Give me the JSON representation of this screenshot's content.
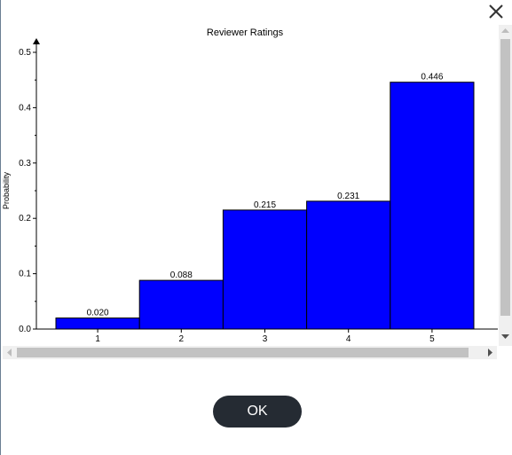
{
  "dialog": {
    "close_icon": "close-icon",
    "ok_label": "OK"
  },
  "colors": {
    "bar_fill": "#0000ff",
    "bar_stroke": "#000000",
    "ok_button_bg": "#252b33",
    "scrollbar_track": "#f0f0f0",
    "scrollbar_thumb": "#c2c2c2"
  },
  "chart_data": {
    "type": "bar",
    "title": "Reviewer Ratings",
    "xlabel": "",
    "ylabel": "Probability",
    "categories": [
      "1",
      "2",
      "3",
      "4",
      "5"
    ],
    "values": [
      0.02,
      0.088,
      0.215,
      0.231,
      0.446
    ],
    "value_labels": [
      "0.020",
      "0.088",
      "0.215",
      "0.231",
      "0.446"
    ],
    "ylim": [
      0,
      0.5
    ],
    "yticks": [
      "0.0",
      "0.1",
      "0.2",
      "0.3",
      "0.4",
      "0.5"
    ],
    "bar_gap": "none",
    "grid": false,
    "legend": "none"
  }
}
